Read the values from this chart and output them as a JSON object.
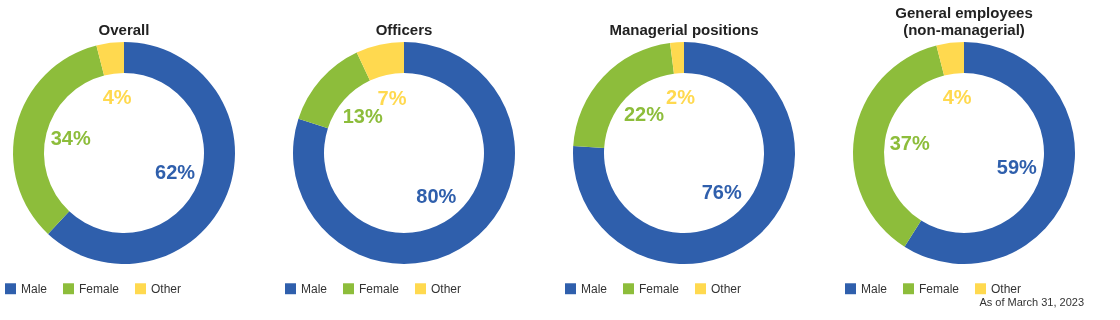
{
  "chart_data": [
    {
      "type": "donut",
      "title": "Overall",
      "categories": [
        "Male",
        "Female",
        "Other"
      ],
      "values": [
        62,
        34,
        4
      ],
      "value_labels": [
        "62%",
        "34%",
        "4%"
      ],
      "colors": [
        "#2f5fac",
        "#8dbd3b",
        "#ffd94f"
      ],
      "legend": "bottom"
    },
    {
      "type": "donut",
      "title": "Officers",
      "categories": [
        "Male",
        "Female",
        "Other"
      ],
      "values": [
        80,
        13,
        7
      ],
      "value_labels": [
        "80%",
        "13%",
        "7%"
      ],
      "colors": [
        "#2f5fac",
        "#8dbd3b",
        "#ffd94f"
      ],
      "legend": "bottom"
    },
    {
      "type": "donut",
      "title": "Managerial positions",
      "categories": [
        "Male",
        "Female",
        "Other"
      ],
      "values": [
        76,
        22,
        2
      ],
      "value_labels": [
        "76%",
        "22%",
        "2%"
      ],
      "colors": [
        "#2f5fac",
        "#8dbd3b",
        "#ffd94f"
      ],
      "legend": "bottom"
    },
    {
      "type": "donut",
      "title": "General employees\n(non-managerial)",
      "categories": [
        "Male",
        "Female",
        "Other"
      ],
      "values": [
        59,
        37,
        4
      ],
      "value_labels": [
        "59%",
        "37%",
        "4%"
      ],
      "colors": [
        "#2f5fac",
        "#8dbd3b",
        "#ffd94f"
      ],
      "legend": "bottom",
      "annotations": [
        "As of March 31, 2023"
      ]
    }
  ]
}
